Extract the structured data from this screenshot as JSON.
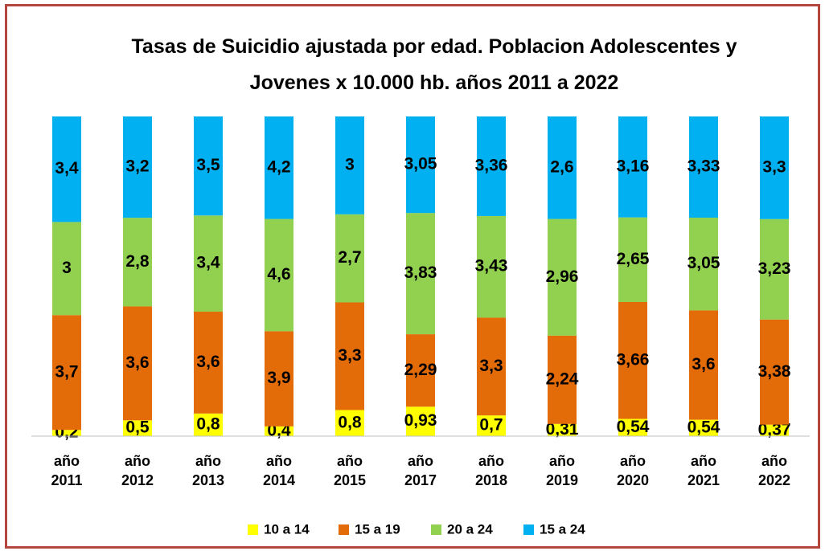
{
  "chart_data": {
    "type": "bar",
    "stack": "percent",
    "title": "Tasas de Suicidio ajustada por edad. Poblacion Adolescentes y Jovenes x 10.000 hb. años 2011 a 2022",
    "categories": [
      "año 2011",
      "año 2012",
      "año 2013",
      "año 2014",
      "año 2015",
      "año 2017",
      "año 2018",
      "año 2019",
      "año 2020",
      "año 2021",
      "año 2022"
    ],
    "series": [
      {
        "name": "10 a 14",
        "color": "#ffff00",
        "values": [
          0.2,
          0.5,
          0.8,
          0.4,
          0.8,
          0.93,
          0.7,
          0.31,
          0.54,
          0.54,
          0.37
        ],
        "value_labels": [
          "0,2",
          "0,5",
          "0,8",
          "0,4",
          "0,8",
          "0,93",
          "0,7",
          "0,31",
          "0,54",
          "0,54",
          "0,37"
        ]
      },
      {
        "name": "15 a 19",
        "color": "#e36c09",
        "values": [
          3.7,
          3.6,
          3.6,
          3.9,
          3.3,
          2.29,
          3.3,
          2.24,
          3.66,
          3.6,
          3.38
        ],
        "value_labels": [
          "3,7",
          "3,6",
          "3,6",
          "3,9",
          "3,3",
          "2,29",
          "3,3",
          "2,24",
          "3,66",
          "3,6",
          "3,38"
        ]
      },
      {
        "name": "20 a 24",
        "color": "#92d050",
        "values": [
          3,
          2.8,
          3.4,
          4.6,
          2.7,
          3.83,
          3.43,
          2.96,
          2.65,
          3.05,
          3.23
        ],
        "value_labels": [
          "3",
          "2,8",
          "3,4",
          "4,6",
          "2,7",
          "3,83",
          "3,43",
          "2,96",
          "2,65",
          "3,05",
          "3,23"
        ]
      },
      {
        "name": "15 a 24",
        "color": "#00b0f0",
        "values": [
          3.4,
          3.2,
          3.5,
          4.2,
          3,
          3.05,
          3.36,
          2.6,
          3.16,
          3.33,
          3.3
        ],
        "value_labels": [
          "3,4",
          "3,2",
          "3,5",
          "4,2",
          "3",
          "3,05",
          "3,36",
          "2,6",
          "3,16",
          "3,33",
          "3,3"
        ]
      }
    ],
    "legend": "bottom"
  }
}
